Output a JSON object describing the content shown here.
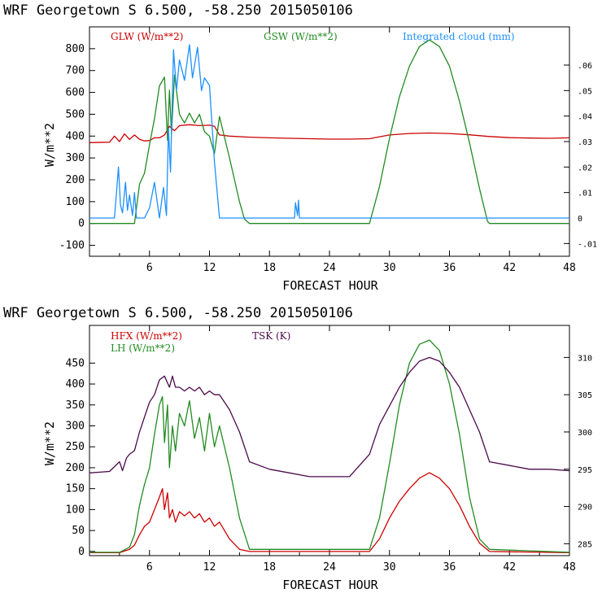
{
  "chart_data": [
    {
      "type": "line",
      "title": "WRF   Georgetown S   6.500, -58.250  2015050106",
      "xlabel": "FORECAST HOUR",
      "ylabel": "W/m**2",
      "xlim": [
        0,
        48
      ],
      "ylim": [
        -150,
        900
      ],
      "xticks": [
        6,
        12,
        18,
        24,
        30,
        36,
        42,
        48
      ],
      "yticks": [
        -100,
        0,
        100,
        200,
        300,
        400,
        500,
        600,
        700,
        800
      ],
      "yticklabels": [
        "-100",
        "0",
        "100",
        "200",
        "300",
        "400",
        "500",
        "600",
        "700",
        "800"
      ],
      "right_axis": {
        "label": "Integrated cloud (mm)",
        "lim": [
          -0.015,
          0.075
        ],
        "ticks": [
          -0.01,
          0,
          0.01,
          0.02,
          0.03,
          0.04,
          0.05,
          0.06
        ],
        "ticklabels": [
          "-.01",
          "0",
          ".01",
          ".02",
          ".03",
          ".04",
          ".05",
          ".06"
        ]
      },
      "series": [
        {
          "name": "GLW (W/m**2)",
          "color": "#cc0000",
          "axis": "left",
          "x": [
            0,
            2,
            2.5,
            3,
            3.5,
            4,
            4.5,
            5,
            5.5,
            6,
            6.5,
            7,
            7.5,
            8,
            8.5,
            9,
            10,
            11,
            12,
            12.5,
            13,
            14,
            16,
            18,
            20,
            22,
            24,
            26,
            28,
            30,
            32,
            34,
            36,
            38,
            40,
            42,
            44,
            46,
            48
          ],
          "y": [
            370,
            372,
            400,
            375,
            410,
            385,
            405,
            385,
            378,
            380,
            392,
            392,
            405,
            445,
            425,
            448,
            452,
            448,
            450,
            445,
            405,
            400,
            395,
            392,
            390,
            388,
            386,
            386,
            388,
            405,
            412,
            414,
            412,
            406,
            398,
            393,
            391,
            390,
            392
          ]
        },
        {
          "name": "GSW (W/m**2)",
          "color": "#228b22",
          "axis": "left",
          "x": [
            0,
            4.5,
            5,
            5.5,
            6,
            6.5,
            7,
            7.5,
            7.8,
            8,
            8.2,
            8.5,
            9,
            9.5,
            10,
            10.5,
            11,
            11.5,
            12,
            12.5,
            13,
            14,
            15,
            15.5,
            16,
            28,
            29,
            30,
            31,
            32,
            33,
            34,
            35,
            36,
            37,
            38,
            39,
            39.8,
            40,
            48
          ],
          "y": [
            0,
            0,
            180,
            230,
            360,
            480,
            630,
            670,
            380,
            610,
            410,
            680,
            500,
            460,
            505,
            460,
            500,
            420,
            400,
            320,
            490,
            300,
            100,
            20,
            0,
            0,
            170,
            390,
            580,
            720,
            810,
            840,
            810,
            720,
            560,
            370,
            160,
            10,
            0,
            0
          ]
        },
        {
          "name": "Integrated cloud (mm)",
          "color": "#1e90ff",
          "axis": "right",
          "x": [
            0,
            2.5,
            2.7,
            2.9,
            3.1,
            3.3,
            3.6,
            3.8,
            4,
            4.3,
            4.5,
            4.7,
            5,
            5.5,
            6,
            6.5,
            7,
            7.4,
            7.7,
            7.9,
            8.1,
            8.4,
            8.7,
            9,
            9.5,
            10,
            10.3,
            10.8,
            11.2,
            11.5,
            12,
            12.5,
            13,
            20.5,
            20.6,
            20.8,
            20.9,
            21,
            48
          ],
          "y": [
            0,
            0,
            0.01,
            0.02,
            0.005,
            0.002,
            0.014,
            0.003,
            0.009,
            0.001,
            0.01,
            0,
            0,
            0,
            0.004,
            0.014,
            0,
            0.012,
            0.001,
            0.035,
            0.018,
            0.066,
            0.05,
            0.062,
            0.054,
            0.068,
            0.055,
            0.067,
            0.05,
            0.055,
            0.052,
            0.022,
            0,
            0,
            0.006,
            0.001,
            0.007,
            0,
            0
          ]
        }
      ]
    },
    {
      "type": "line",
      "title": "WRF   Georgetown S   6.500, -58.250  2015050106",
      "xlabel": "FORECAST HOUR",
      "ylabel": "W/m**2",
      "xlim": [
        0,
        48
      ],
      "ylim": [
        -10,
        540
      ],
      "xticks": [
        6,
        12,
        18,
        24,
        30,
        36,
        42,
        48
      ],
      "yticks": [
        0,
        50,
        100,
        150,
        200,
        250,
        300,
        350,
        400,
        450
      ],
      "yticklabels": [
        "0",
        "50",
        "100",
        "150",
        "200",
        "250",
        "300",
        "350",
        "400",
        "450"
      ],
      "right_axis": {
        "label": "TSK (K)",
        "lim": [
          283.4,
          314.3
        ],
        "ticks": [
          285,
          290,
          295,
          300,
          305,
          310
        ],
        "ticklabels": [
          "285",
          "290",
          "295",
          "300",
          "305",
          "310"
        ]
      },
      "series": [
        {
          "name": "HFX (W/m**2)",
          "color": "#cc0000",
          "axis": "left",
          "x": [
            0,
            3,
            4,
            4.5,
            5,
            5.5,
            6,
            6.5,
            7,
            7.3,
            7.5,
            7.8,
            8,
            8.3,
            8.6,
            9,
            9.5,
            10,
            10.5,
            11,
            11.5,
            12,
            12.5,
            13,
            14,
            15,
            16,
            28,
            29,
            30,
            31,
            32,
            33,
            34,
            35,
            36,
            37,
            38,
            39,
            40,
            48
          ],
          "y": [
            -3,
            -3,
            5,
            15,
            40,
            60,
            70,
            100,
            130,
            150,
            100,
            140,
            80,
            100,
            70,
            95,
            85,
            95,
            80,
            90,
            70,
            80,
            60,
            70,
            30,
            5,
            0,
            0,
            30,
            80,
            120,
            150,
            175,
            188,
            175,
            150,
            110,
            60,
            20,
            0,
            -3
          ]
        },
        {
          "name": "LH  (W/m**2)",
          "color": "#228b22",
          "axis": "left",
          "x": [
            0,
            3,
            4,
            4.5,
            5,
            5.5,
            6,
            6.5,
            7,
            7.3,
            7.5,
            7.8,
            8,
            8.3,
            8.6,
            9,
            9.5,
            10,
            10.5,
            11,
            11.5,
            12,
            12.5,
            13,
            14,
            15,
            16,
            18,
            28,
            29,
            30,
            31,
            32,
            33,
            34,
            35,
            36,
            37,
            38,
            39,
            40,
            48
          ],
          "y": [
            -2,
            -2,
            10,
            40,
            110,
            160,
            200,
            280,
            350,
            370,
            260,
            350,
            200,
            300,
            240,
            330,
            300,
            360,
            270,
            320,
            240,
            330,
            250,
            300,
            200,
            80,
            5,
            5,
            5,
            80,
            210,
            350,
            450,
            495,
            505,
            480,
            400,
            280,
            130,
            30,
            5,
            -2
          ]
        },
        {
          "name": "TSK (K)",
          "color": "#4b0a4b",
          "axis": "right",
          "x": [
            0,
            2,
            3,
            3.3,
            3.7,
            4,
            4.5,
            5,
            5.5,
            6,
            6.5,
            7,
            7.5,
            8,
            8.3,
            8.6,
            9,
            9.5,
            10,
            10.5,
            11,
            11.5,
            12,
            12.5,
            13,
            14,
            15,
            16,
            18,
            20,
            22,
            24,
            26,
            28,
            29,
            30,
            31,
            32,
            33,
            34,
            35,
            36,
            37,
            38,
            39,
            40,
            42,
            44,
            46,
            48
          ],
          "y": [
            294.5,
            294.7,
            296,
            294.8,
            296.5,
            297,
            297.5,
            300,
            302,
            304,
            305,
            307,
            307.5,
            306,
            307.5,
            306,
            306,
            305.5,
            306,
            305.5,
            306,
            305,
            305.5,
            305,
            305,
            303,
            300,
            296,
            295,
            294.5,
            294,
            294,
            294,
            297,
            301,
            303.5,
            306,
            308,
            309.5,
            310,
            309.5,
            308,
            306,
            303,
            300,
            296,
            295.5,
            295,
            295,
            294.8
          ]
        }
      ]
    }
  ]
}
